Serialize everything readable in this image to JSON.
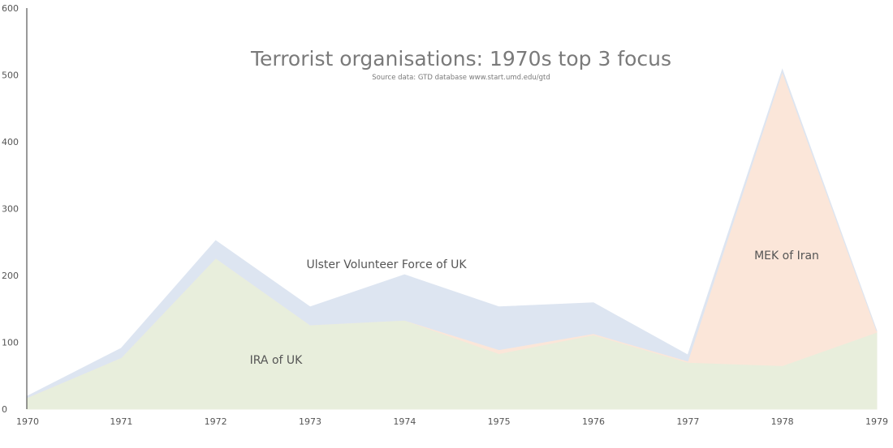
{
  "chart_data": {
    "type": "area",
    "stacked": true,
    "title": "Terrorist organisations: 1970s top 3 focus",
    "subtitle": "Source data: GTD database www.start.umd.edu/gtd",
    "x": [
      "1970",
      "1971",
      "1972",
      "1973",
      "1974",
      "1975",
      "1976",
      "1977",
      "1978",
      "1979"
    ],
    "ylim": [
      0,
      600
    ],
    "yticks": [
      0,
      100,
      200,
      300,
      400,
      500,
      600
    ],
    "grid": false,
    "legend": "none",
    "series": [
      {
        "name": "IRA of UK",
        "values": [
          17,
          77,
          226,
          126,
          133,
          83,
          111,
          70,
          65,
          115
        ],
        "color": "#e8eedc"
      },
      {
        "name": "MEK of Iran",
        "values": [
          0,
          0,
          0,
          0,
          0,
          6,
          2,
          2,
          440,
          2
        ],
        "color": "#fbe6d9"
      },
      {
        "name": "Ulster Volunteer Force of UK",
        "values": [
          2,
          14,
          26,
          27,
          68,
          64,
          46,
          9,
          3,
          0
        ],
        "color": "#dde5f1"
      }
    ]
  }
}
